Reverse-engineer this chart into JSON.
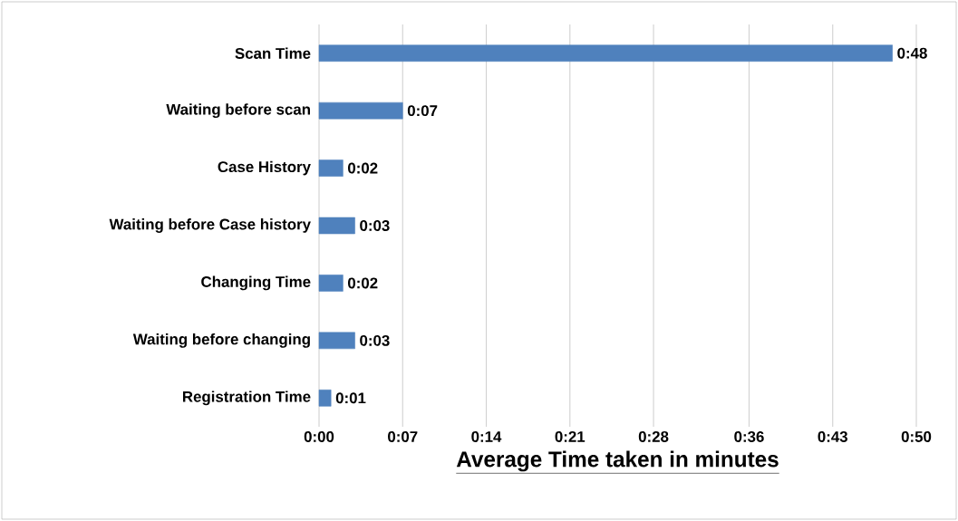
{
  "chart_data": {
    "type": "bar",
    "orientation": "horizontal",
    "xlabel": "Average Time taken in minutes",
    "categories": [
      "Scan Time",
      "Waiting before scan",
      "Case History",
      "Waiting before Case history",
      "Changing Time",
      "Waiting before changing",
      "Registration Time"
    ],
    "values": [
      48,
      7,
      2,
      3,
      2,
      3,
      1
    ],
    "value_labels": [
      "0:48",
      "0:07",
      "0:02",
      "0:03",
      "0:02",
      "0:03",
      "0:01"
    ],
    "color": "#4f81bd",
    "xlim": [
      0,
      50
    ],
    "xticks": [
      {
        "value": 0,
        "label": "0:00"
      },
      {
        "value": 7,
        "label": "0:07"
      },
      {
        "value": 14,
        "label": "0:14"
      },
      {
        "value": 21,
        "label": "0:21"
      },
      {
        "value": 28,
        "label": "0:28"
      },
      {
        "value": 36,
        "label": "0:36"
      },
      {
        "value": 43,
        "label": "0:43"
      },
      {
        "value": 50,
        "label": "0:50"
      }
    ],
    "grid": "x"
  }
}
